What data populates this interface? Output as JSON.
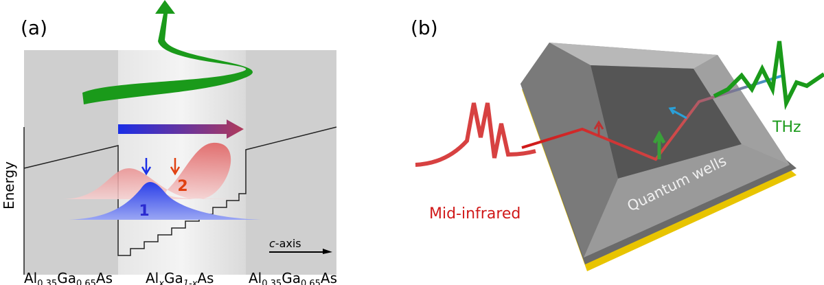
{
  "panel_a": {
    "label": "(a)",
    "y_axis": "Energy",
    "axis_label": {
      "italic": "c",
      "rest": "-axis"
    },
    "peaks": [
      "1",
      "2"
    ],
    "materials": [
      {
        "parts": [
          "Al",
          "0.35",
          "Ga",
          "0.65",
          "As"
        ]
      },
      {
        "parts": [
          "Al",
          "x",
          "Ga",
          "1-x",
          "As"
        ]
      },
      {
        "parts": [
          "Al",
          "0.35",
          "Ga",
          "0.65",
          "As"
        ]
      }
    ]
  },
  "panel_b": {
    "label": "(b)",
    "labels": [
      "Mid-infrared",
      "Quantum wells",
      "THz"
    ]
  }
}
